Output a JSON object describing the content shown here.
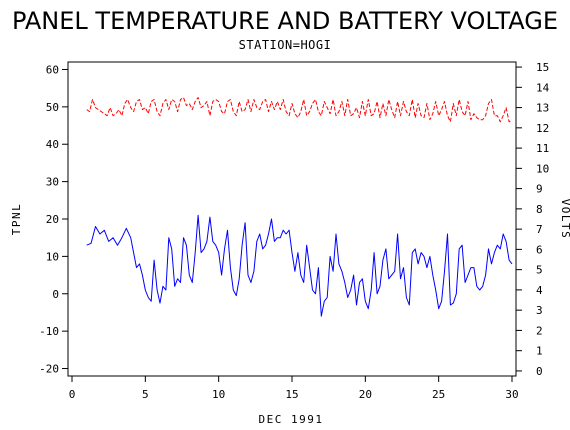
{
  "chart_data": {
    "type": "line",
    "title": "PANEL TEMPERATURE AND BATTERY VOLTAGE",
    "subtitle": "STATION=HOGI",
    "xlabel": "DEC 1991",
    "ylabel_left": "TPNL",
    "ylabel_right": "VOLTS",
    "xlim": [
      0,
      30
    ],
    "ylim_left": [
      -22,
      62
    ],
    "ylim_right": [
      -0.25,
      15.25
    ],
    "x_ticks": [
      0,
      5,
      10,
      15,
      20,
      25,
      30
    ],
    "y_ticks_left": [
      -20,
      -10,
      0,
      10,
      20,
      30,
      40,
      50,
      60
    ],
    "y_ticks_right": [
      0,
      1,
      2,
      3,
      4,
      5,
      6,
      7,
      8,
      9,
      10,
      11,
      12,
      13,
      14,
      15
    ],
    "grid": false,
    "series": [
      {
        "axis": "left",
        "color": "#0000ff",
        "style": "solid",
        "points": [
          [
            1.0,
            13
          ],
          [
            1.3,
            13.5
          ],
          [
            1.6,
            18
          ],
          [
            1.9,
            16
          ],
          [
            2.2,
            17
          ],
          [
            2.5,
            14
          ],
          [
            2.8,
            15
          ],
          [
            3.1,
            13
          ],
          [
            3.4,
            15
          ],
          [
            3.7,
            17.5
          ],
          [
            4.0,
            15
          ],
          [
            4.2,
            11
          ],
          [
            4.4,
            7
          ],
          [
            4.6,
            8
          ],
          [
            4.8,
            5
          ],
          [
            5.0,
            1
          ],
          [
            5.2,
            -1
          ],
          [
            5.4,
            -2
          ],
          [
            5.6,
            9
          ],
          [
            5.8,
            1
          ],
          [
            6.0,
            -2.5
          ],
          [
            6.2,
            2
          ],
          [
            6.4,
            1
          ],
          [
            6.6,
            15
          ],
          [
            6.8,
            12
          ],
          [
            7.0,
            2
          ],
          [
            7.2,
            4
          ],
          [
            7.4,
            3
          ],
          [
            7.6,
            15
          ],
          [
            7.8,
            13
          ],
          [
            8.0,
            5
          ],
          [
            8.2,
            3
          ],
          [
            8.4,
            11
          ],
          [
            8.6,
            21
          ],
          [
            8.8,
            11
          ],
          [
            9.0,
            12
          ],
          [
            9.2,
            14
          ],
          [
            9.4,
            20.5
          ],
          [
            9.6,
            14
          ],
          [
            9.8,
            13
          ],
          [
            10.0,
            11
          ],
          [
            10.2,
            5
          ],
          [
            10.4,
            12
          ],
          [
            10.6,
            17
          ],
          [
            10.8,
            7
          ],
          [
            11.0,
            1
          ],
          [
            11.2,
            -0.5
          ],
          [
            11.4,
            4
          ],
          [
            11.6,
            13
          ],
          [
            11.8,
            19
          ],
          [
            12.0,
            5
          ],
          [
            12.2,
            3
          ],
          [
            12.4,
            6
          ],
          [
            12.6,
            14
          ],
          [
            12.8,
            16
          ],
          [
            13.0,
            12
          ],
          [
            13.2,
            13
          ],
          [
            13.4,
            16
          ],
          [
            13.6,
            20
          ],
          [
            13.8,
            14
          ],
          [
            14.0,
            15
          ],
          [
            14.2,
            15
          ],
          [
            14.4,
            17
          ],
          [
            14.6,
            16
          ],
          [
            14.8,
            17
          ],
          [
            15.0,
            11
          ],
          [
            15.2,
            6
          ],
          [
            15.4,
            11
          ],
          [
            15.6,
            5
          ],
          [
            15.8,
            3
          ],
          [
            16.0,
            13
          ],
          [
            16.2,
            7
          ],
          [
            16.4,
            1
          ],
          [
            16.6,
            0
          ],
          [
            16.8,
            7
          ],
          [
            17.0,
            -6
          ],
          [
            17.2,
            -2
          ],
          [
            17.4,
            -1
          ],
          [
            17.6,
            10
          ],
          [
            17.8,
            6
          ],
          [
            18.0,
            16
          ],
          [
            18.2,
            8
          ],
          [
            18.4,
            6
          ],
          [
            18.6,
            3
          ],
          [
            18.8,
            -1
          ],
          [
            19.0,
            1
          ],
          [
            19.2,
            5
          ],
          [
            19.4,
            -3
          ],
          [
            19.6,
            3
          ],
          [
            19.8,
            4
          ],
          [
            20.0,
            -2
          ],
          [
            20.2,
            -4
          ],
          [
            20.4,
            1
          ],
          [
            20.6,
            11
          ],
          [
            20.8,
            0
          ],
          [
            21.0,
            2
          ],
          [
            21.2,
            9
          ],
          [
            21.4,
            12
          ],
          [
            21.6,
            4
          ],
          [
            21.8,
            5
          ],
          [
            22.0,
            6
          ],
          [
            22.2,
            16
          ],
          [
            22.4,
            4
          ],
          [
            22.6,
            7
          ],
          [
            22.8,
            -1
          ],
          [
            23.0,
            -3
          ],
          [
            23.2,
            11
          ],
          [
            23.4,
            12
          ],
          [
            23.6,
            8
          ],
          [
            23.8,
            11
          ],
          [
            24.0,
            10
          ],
          [
            24.2,
            7
          ],
          [
            24.4,
            10
          ],
          [
            24.6,
            5
          ],
          [
            24.8,
            1
          ],
          [
            25.0,
            -4
          ],
          [
            25.2,
            -2
          ],
          [
            25.4,
            6
          ],
          [
            25.6,
            16
          ],
          [
            25.8,
            -3
          ],
          [
            26.0,
            -2.5
          ],
          [
            26.2,
            0
          ],
          [
            26.4,
            12
          ],
          [
            26.6,
            13
          ],
          [
            26.8,
            3
          ],
          [
            27.0,
            5
          ],
          [
            27.2,
            7
          ],
          [
            27.4,
            7
          ],
          [
            27.6,
            2
          ],
          [
            27.8,
            1
          ],
          [
            28.0,
            2
          ],
          [
            28.2,
            5
          ],
          [
            28.4,
            12
          ],
          [
            28.6,
            8
          ],
          [
            28.8,
            11
          ],
          [
            29.0,
            13
          ],
          [
            29.2,
            12
          ],
          [
            29.4,
            16
          ],
          [
            29.6,
            14
          ],
          [
            29.8,
            9
          ],
          [
            30.0,
            8
          ]
        ]
      },
      {
        "axis": "right",
        "color": "#ff0000",
        "style": "dashed",
        "points": [
          [
            1.0,
            12.9
          ],
          [
            1.2,
            12.8
          ],
          [
            1.4,
            13.4
          ],
          [
            1.6,
            13.0
          ],
          [
            1.8,
            12.9
          ],
          [
            2.0,
            12.8
          ],
          [
            2.2,
            12.7
          ],
          [
            2.4,
            12.6
          ],
          [
            2.6,
            13.0
          ],
          [
            2.8,
            12.6
          ],
          [
            3.0,
            12.7
          ],
          [
            3.2,
            12.9
          ],
          [
            3.4,
            12.6
          ],
          [
            3.6,
            13.2
          ],
          [
            3.8,
            13.4
          ],
          [
            4.0,
            13.0
          ],
          [
            4.2,
            12.8
          ],
          [
            4.4,
            13.3
          ],
          [
            4.6,
            13.4
          ],
          [
            4.8,
            12.9
          ],
          [
            5.0,
            13.0
          ],
          [
            5.2,
            12.7
          ],
          [
            5.4,
            13.3
          ],
          [
            5.6,
            13.4
          ],
          [
            5.8,
            12.8
          ],
          [
            6.0,
            12.6
          ],
          [
            6.2,
            13.2
          ],
          [
            6.4,
            13.4
          ],
          [
            6.6,
            12.9
          ],
          [
            6.8,
            13.4
          ],
          [
            7.0,
            13.3
          ],
          [
            7.2,
            12.8
          ],
          [
            7.4,
            13.4
          ],
          [
            7.6,
            13.5
          ],
          [
            7.8,
            13.1
          ],
          [
            8.0,
            13.2
          ],
          [
            8.2,
            12.9
          ],
          [
            8.4,
            13.3
          ],
          [
            8.6,
            13.5
          ],
          [
            8.8,
            13.0
          ],
          [
            9.0,
            13.1
          ],
          [
            9.2,
            13.3
          ],
          [
            9.4,
            12.6
          ],
          [
            9.6,
            13.3
          ],
          [
            9.8,
            13.4
          ],
          [
            10.0,
            13.3
          ],
          [
            10.2,
            12.8
          ],
          [
            10.4,
            12.7
          ],
          [
            10.6,
            13.3
          ],
          [
            10.8,
            13.4
          ],
          [
            11.0,
            12.8
          ],
          [
            11.2,
            12.6
          ],
          [
            11.4,
            13.3
          ],
          [
            11.6,
            12.8
          ],
          [
            11.8,
            12.9
          ],
          [
            12.0,
            13.4
          ],
          [
            12.2,
            12.8
          ],
          [
            12.4,
            13.4
          ],
          [
            12.6,
            13.0
          ],
          [
            12.8,
            12.9
          ],
          [
            13.0,
            13.3
          ],
          [
            13.2,
            13.4
          ],
          [
            13.4,
            12.8
          ],
          [
            13.6,
            13.3
          ],
          [
            13.8,
            12.9
          ],
          [
            14.0,
            13.3
          ],
          [
            14.2,
            12.9
          ],
          [
            14.4,
            13.4
          ],
          [
            14.6,
            12.8
          ],
          [
            14.8,
            12.6
          ],
          [
            15.0,
            13.2
          ],
          [
            15.2,
            12.7
          ],
          [
            15.4,
            12.5
          ],
          [
            15.6,
            12.8
          ],
          [
            15.8,
            13.4
          ],
          [
            16.0,
            12.6
          ],
          [
            16.2,
            12.8
          ],
          [
            16.4,
            13.2
          ],
          [
            16.6,
            13.4
          ],
          [
            16.8,
            12.8
          ],
          [
            17.0,
            12.6
          ],
          [
            17.2,
            13.3
          ],
          [
            17.4,
            13.0
          ],
          [
            17.6,
            12.7
          ],
          [
            17.8,
            13.4
          ],
          [
            18.0,
            12.6
          ],
          [
            18.2,
            12.8
          ],
          [
            18.4,
            13.3
          ],
          [
            18.6,
            12.6
          ],
          [
            18.8,
            13.4
          ],
          [
            19.0,
            12.6
          ],
          [
            19.2,
            12.7
          ],
          [
            19.4,
            13.0
          ],
          [
            19.6,
            12.5
          ],
          [
            19.8,
            13.3
          ],
          [
            20.0,
            12.6
          ],
          [
            20.2,
            13.4
          ],
          [
            20.4,
            12.6
          ],
          [
            20.6,
            12.7
          ],
          [
            20.8,
            13.3
          ],
          [
            21.0,
            12.5
          ],
          [
            21.2,
            13.2
          ],
          [
            21.4,
            12.6
          ],
          [
            21.6,
            13.4
          ],
          [
            21.8,
            12.9
          ],
          [
            22.0,
            12.5
          ],
          [
            22.2,
            13.3
          ],
          [
            22.4,
            12.6
          ],
          [
            22.6,
            13.3
          ],
          [
            22.8,
            12.8
          ],
          [
            23.0,
            12.6
          ],
          [
            23.2,
            13.4
          ],
          [
            23.4,
            12.5
          ],
          [
            23.6,
            13.2
          ],
          [
            23.8,
            12.6
          ],
          [
            24.0,
            12.5
          ],
          [
            24.2,
            13.2
          ],
          [
            24.4,
            12.4
          ],
          [
            24.6,
            12.7
          ],
          [
            24.8,
            13.3
          ],
          [
            25.0,
            12.6
          ],
          [
            25.2,
            12.9
          ],
          [
            25.4,
            13.3
          ],
          [
            25.6,
            12.6
          ],
          [
            25.8,
            12.3
          ],
          [
            26.0,
            13.2
          ],
          [
            26.2,
            12.6
          ],
          [
            26.4,
            13.4
          ],
          [
            26.6,
            12.8
          ],
          [
            26.8,
            12.6
          ],
          [
            27.0,
            13.3
          ],
          [
            27.2,
            12.4
          ],
          [
            27.4,
            12.7
          ],
          [
            27.6,
            12.5
          ],
          [
            27.8,
            12.4
          ],
          [
            28.0,
            12.4
          ],
          [
            28.2,
            12.6
          ],
          [
            28.4,
            13.2
          ],
          [
            28.6,
            13.4
          ],
          [
            28.8,
            12.6
          ],
          [
            29.0,
            12.6
          ],
          [
            29.2,
            12.3
          ],
          [
            29.4,
            12.6
          ],
          [
            29.6,
            13.0
          ],
          [
            29.8,
            12.3
          ],
          [
            30.0,
            12.4
          ]
        ]
      }
    ]
  }
}
